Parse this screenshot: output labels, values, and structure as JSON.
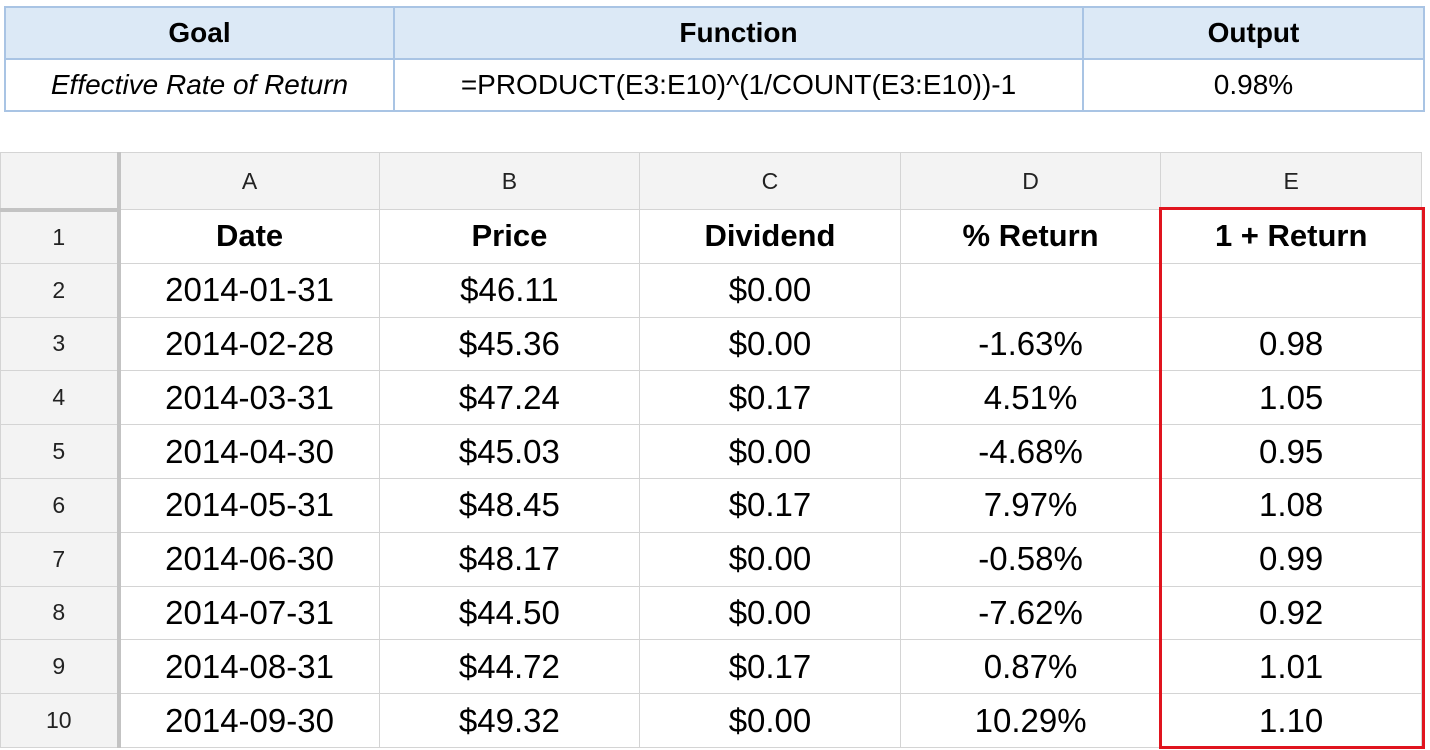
{
  "summary": {
    "headers": [
      "Goal",
      "Function",
      "Output"
    ],
    "goal": "Effective Rate of Return",
    "function": "=PRODUCT(E3:E10)^(1/COUNT(E3:E10))-1",
    "output": "0.98%"
  },
  "sheet": {
    "columns": [
      "A",
      "B",
      "C",
      "D",
      "E"
    ],
    "row_numbers": [
      "1",
      "2",
      "3",
      "4",
      "5",
      "6",
      "7",
      "8",
      "9",
      "10"
    ],
    "header_row": [
      "Date",
      "Price",
      "Dividend",
      "% Return",
      "1 + Return"
    ],
    "rows": [
      [
        "2014-01-31",
        "$46.11",
        "$0.00",
        "",
        ""
      ],
      [
        "2014-02-28",
        "$45.36",
        "$0.00",
        "-1.63%",
        "0.98"
      ],
      [
        "2014-03-31",
        "$47.24",
        "$0.17",
        "4.51%",
        "1.05"
      ],
      [
        "2014-04-30",
        "$45.03",
        "$0.00",
        "-4.68%",
        "0.95"
      ],
      [
        "2014-05-31",
        "$48.45",
        "$0.17",
        "7.97%",
        "1.08"
      ],
      [
        "2014-06-30",
        "$48.17",
        "$0.00",
        "-0.58%",
        "0.99"
      ],
      [
        "2014-07-31",
        "$44.50",
        "$0.00",
        "-7.62%",
        "0.92"
      ],
      [
        "2014-08-31",
        "$44.72",
        "$0.17",
        "0.87%",
        "1.01"
      ],
      [
        "2014-09-30",
        "$49.32",
        "$0.00",
        "10.29%",
        "1.10"
      ]
    ],
    "highlight_color": "#e0141e"
  }
}
